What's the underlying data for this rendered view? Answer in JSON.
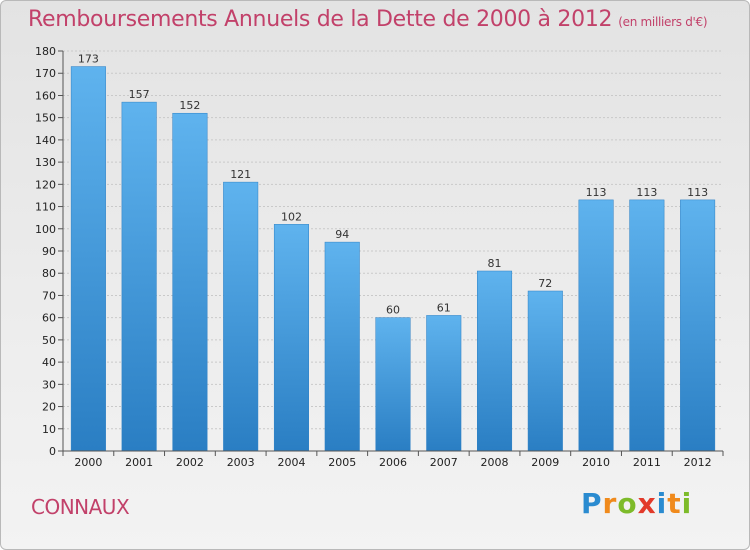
{
  "title": "Remboursements Annuels de la Dette de 2000 à 2012",
  "unit": "(en milliers d'€)",
  "city": "CONNAUX",
  "brand": {
    "letters": [
      "P",
      "r",
      "o",
      "x",
      "i",
      "t",
      "i"
    ],
    "colors": [
      "#2a8bd0",
      "#f08a1c",
      "#7dbb2a",
      "#e23a2a",
      "#2a8bd0",
      "#f08a1c",
      "#7dbb2a"
    ]
  },
  "colors": {
    "bar": "#5aaeea",
    "bar_dark": "#2b7fc4",
    "title": "#c2416a",
    "grid": "#c9c9c9"
  },
  "chart_data": {
    "type": "bar",
    "title": "Remboursements Annuels de la Dette de 2000 à 2012",
    "categories": [
      "2000",
      "2001",
      "2002",
      "2003",
      "2004",
      "2005",
      "2006",
      "2007",
      "2008",
      "2009",
      "2010",
      "2011",
      "2012"
    ],
    "values": [
      173,
      157,
      152,
      121,
      102,
      94,
      60,
      61,
      81,
      72,
      113,
      113,
      113
    ],
    "ylim": [
      0,
      180
    ],
    "yticks": [
      0,
      10,
      20,
      30,
      40,
      50,
      60,
      70,
      80,
      90,
      100,
      110,
      120,
      130,
      140,
      150,
      160,
      170,
      180
    ],
    "grid": true
  }
}
